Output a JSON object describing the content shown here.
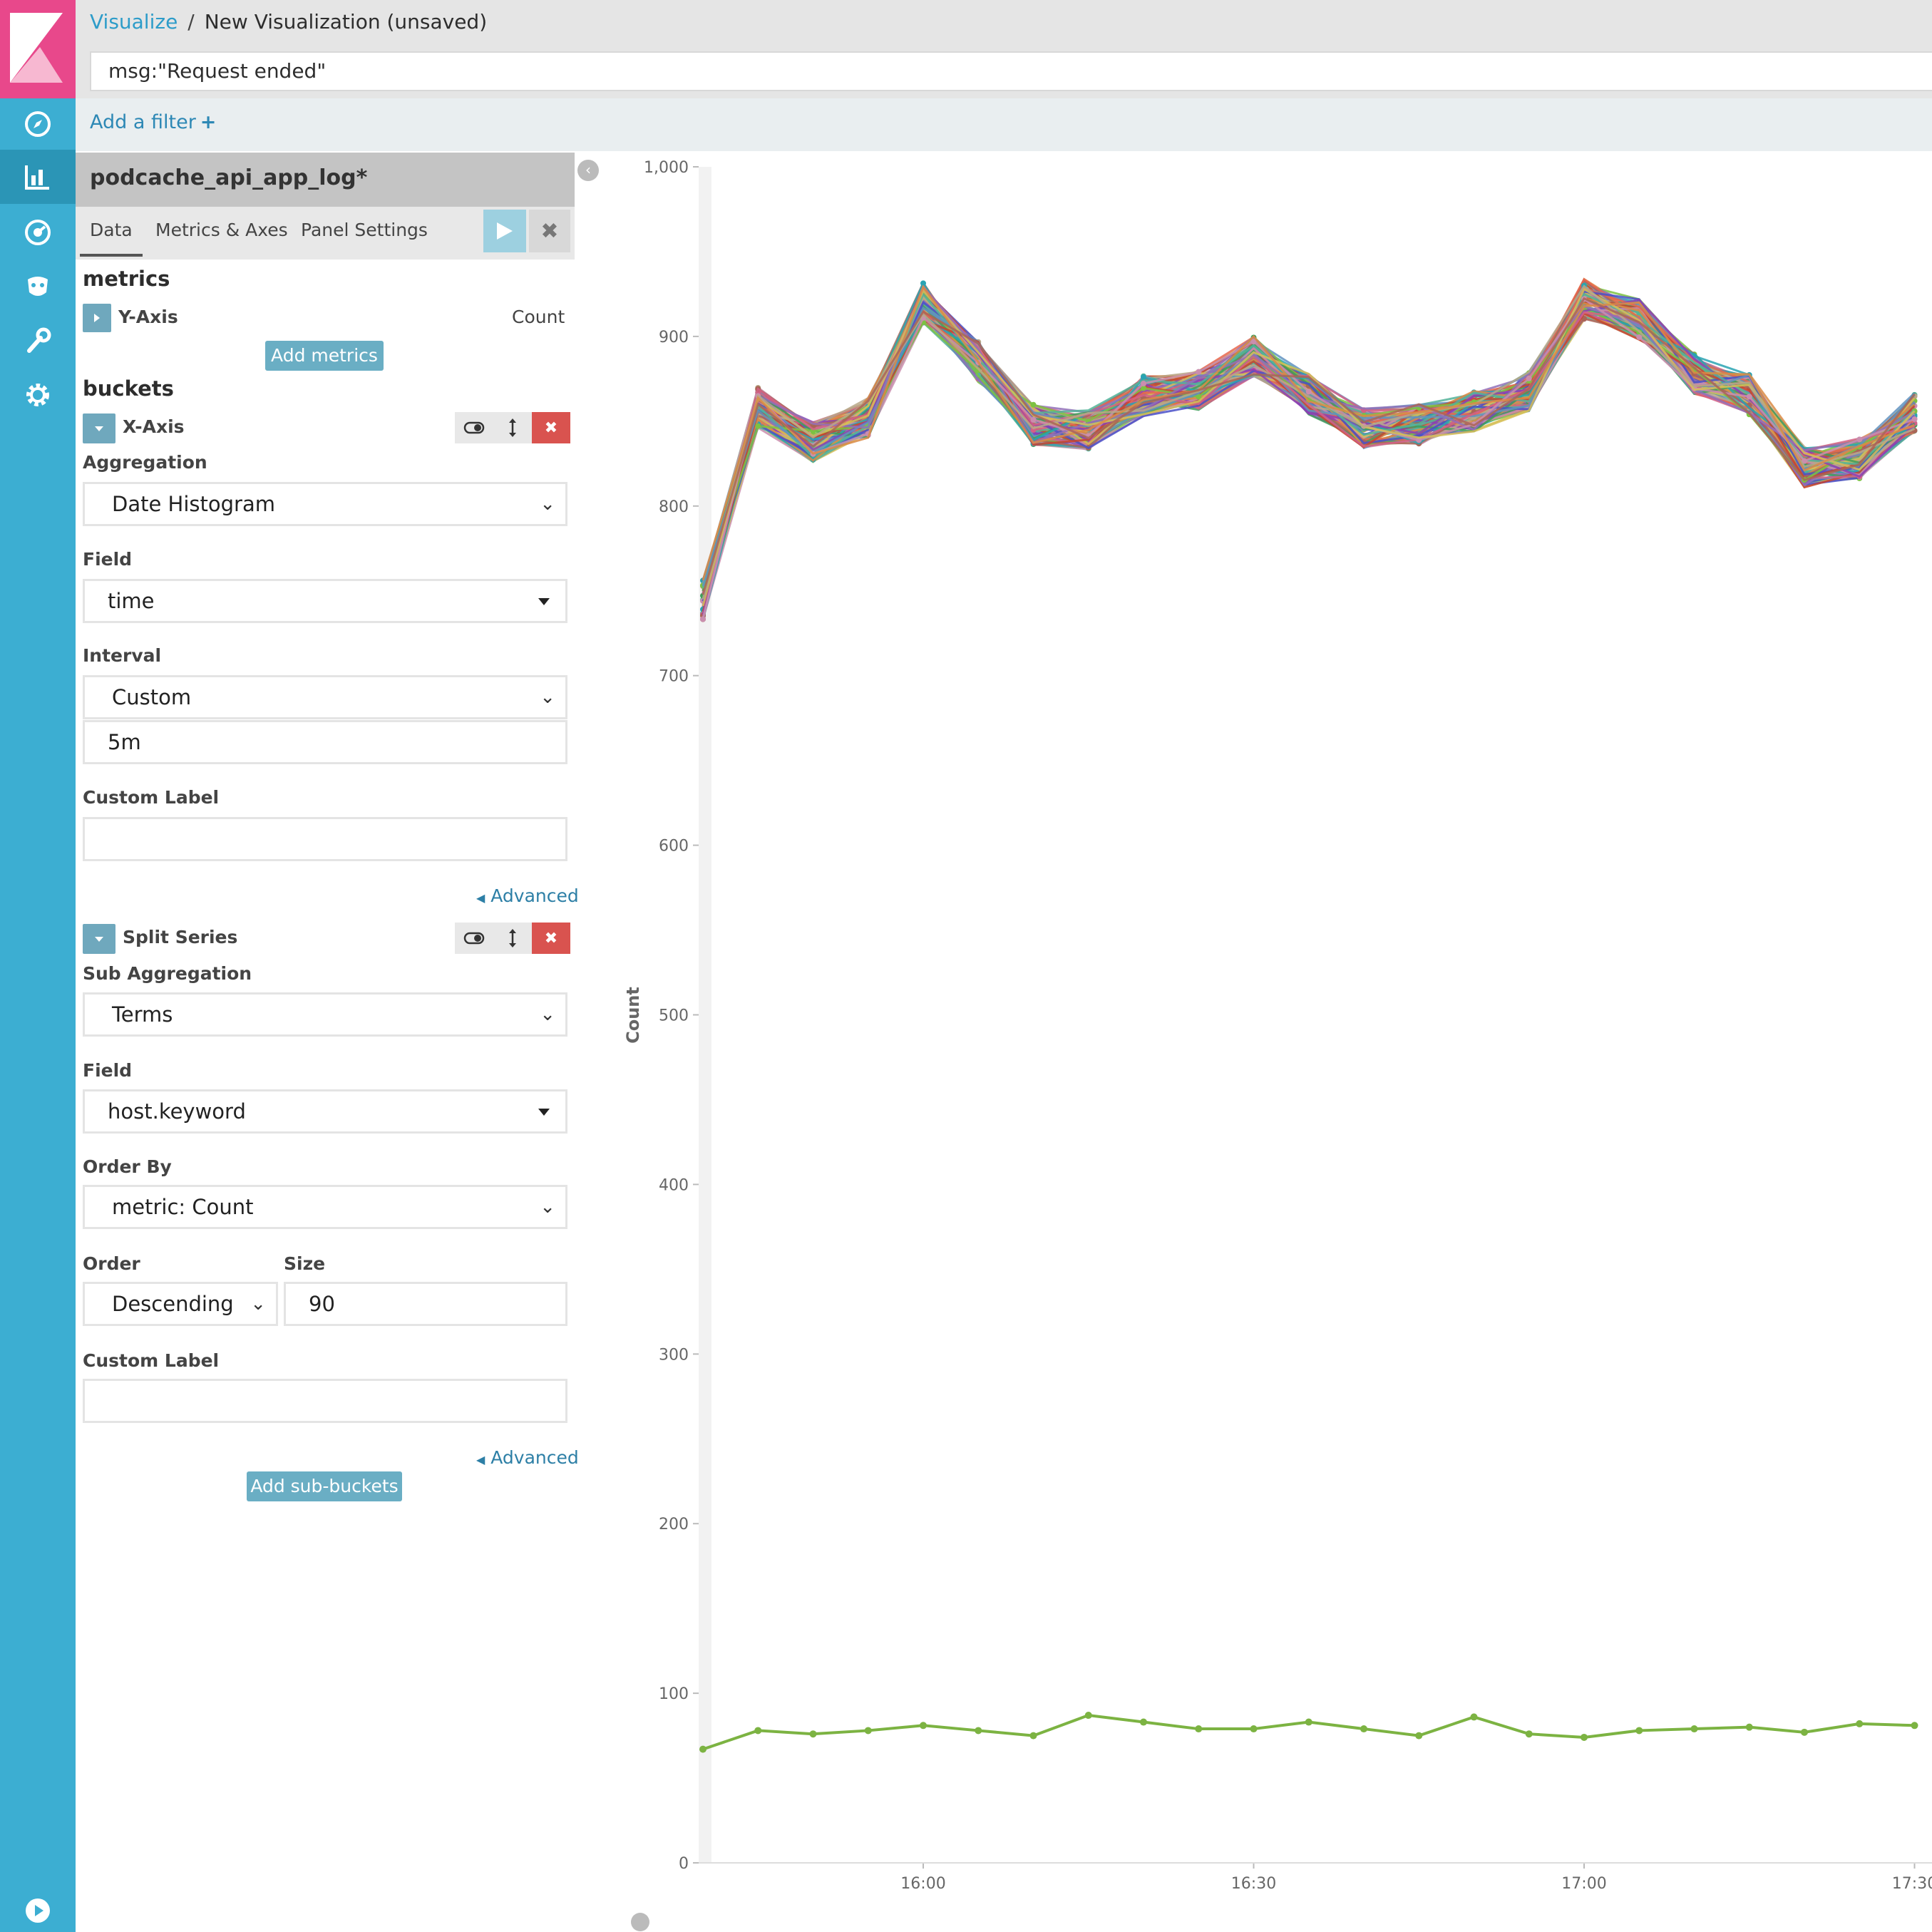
{
  "breadcrumb": {
    "root": "Visualize",
    "separator": "/",
    "current": "New Visualization (unsaved)"
  },
  "query": "msg:\"Request ended\"",
  "filter": {
    "add_label": "Add a filter",
    "add_icon": "+"
  },
  "nav": {
    "items": [
      "compass-icon",
      "bar-chart-icon",
      "dashboard-icon",
      "timelion-icon",
      "wrench-icon",
      "gear-icon"
    ],
    "bottom": "play-icon",
    "active_color": "#2b95b6",
    "color": "#3caed2",
    "logo_color": "#e8488b"
  },
  "sidebar": {
    "index_pattern": "podcache_api_app_log*",
    "tabs": [
      "Data",
      "Metrics & Axes",
      "Panel Settings"
    ],
    "metrics": {
      "title": "metrics",
      "y_axis_label": "Y-Axis",
      "y_axis_value": "Count",
      "add_button": "Add metrics"
    },
    "buckets": {
      "title": "buckets",
      "x_axis": {
        "title": "X-Axis",
        "aggregation_label": "Aggregation",
        "aggregation": "Date Histogram",
        "field_label": "Field",
        "field": "time",
        "interval_label": "Interval",
        "interval": "Custom",
        "interval_value": "5m",
        "custom_label_label": "Custom Label",
        "custom_label": "",
        "advanced": "Advanced"
      },
      "split_series": {
        "title": "Split Series",
        "sub_agg_label": "Sub Aggregation",
        "sub_agg": "Terms",
        "field_label": "Field",
        "field": "host.keyword",
        "order_by_label": "Order By",
        "order_by": "metric: Count",
        "order_label": "Order",
        "order": "Descending",
        "size_label": "Size",
        "size": "90",
        "custom_label_label": "Custom Label",
        "custom_label": "",
        "advanced": "Advanced"
      },
      "add_sub_buckets": "Add sub-buckets"
    }
  },
  "chart_data": {
    "type": "line",
    "ylabel": "Count",
    "xlabel": "",
    "ylim": [
      0,
      1000
    ],
    "y_ticks": [
      "0",
      "100",
      "200",
      "300",
      "400",
      "500",
      "600",
      "700",
      "800",
      "900",
      "1,000"
    ],
    "x_ticks": [
      "16:00",
      "16:30",
      "17:00",
      "17:30"
    ],
    "x": [
      "15:40",
      "15:45",
      "15:50",
      "15:55",
      "16:00",
      "16:05",
      "16:10",
      "16:15",
      "16:20",
      "16:25",
      "16:30",
      "16:35",
      "16:40",
      "16:45",
      "16:50",
      "16:55",
      "17:00",
      "17:05",
      "17:10",
      "17:15",
      "17:20",
      "17:25",
      "17:30"
    ],
    "band_series_count": 89,
    "band_center": [
      745,
      858,
      838,
      852,
      920,
      885,
      848,
      845,
      865,
      868,
      888,
      866,
      846,
      848,
      856,
      868,
      922,
      910,
      878,
      866,
      823,
      828,
      855
    ],
    "band_spread": 12,
    "band_colors": [
      "#54b399",
      "#6092c0",
      "#d36086",
      "#9170b8",
      "#ca8eae",
      "#d6bf57",
      "#b9a888",
      "#da8b45",
      "#aa6556",
      "#e7664c",
      "#3f9e5b",
      "#4a50c8",
      "#29a3b3",
      "#c7452f",
      "#7cc242",
      "#8b3fb5"
    ],
    "series": [
      {
        "name": "",
        "color": "#7cb342",
        "values": [
          67,
          78,
          76,
          78,
          81,
          78,
          75,
          87,
          83,
          79,
          79,
          83,
          79,
          75,
          86,
          76,
          74,
          78,
          79,
          80,
          77,
          82,
          81
        ]
      }
    ],
    "grid": false
  }
}
